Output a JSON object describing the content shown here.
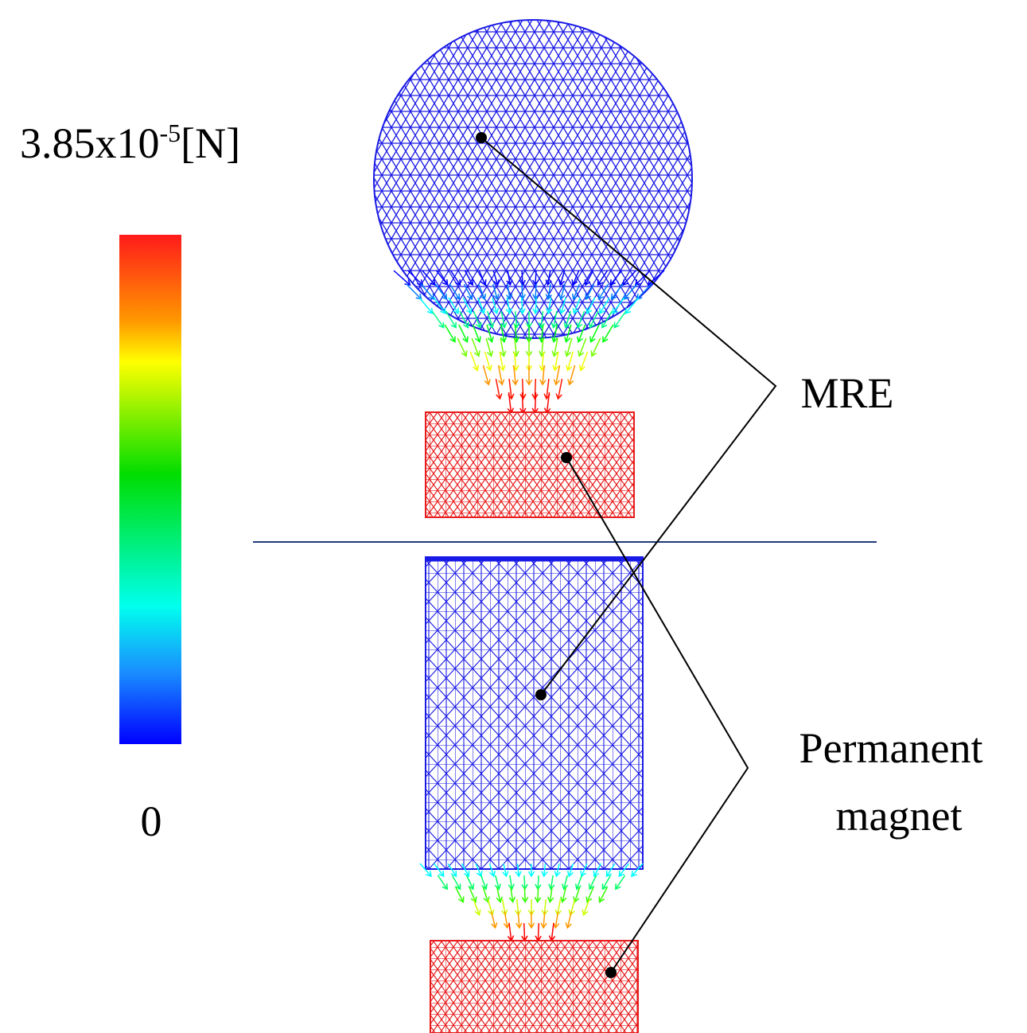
{
  "colorbar": {
    "max_label": {
      "mantissa": "3.85x10",
      "exponent": "-5",
      "unit": "[N]"
    },
    "min_label": "0"
  },
  "labels": {
    "mre": "MRE",
    "permanent_magnet": [
      "Permanent",
      "magnet"
    ]
  }
}
